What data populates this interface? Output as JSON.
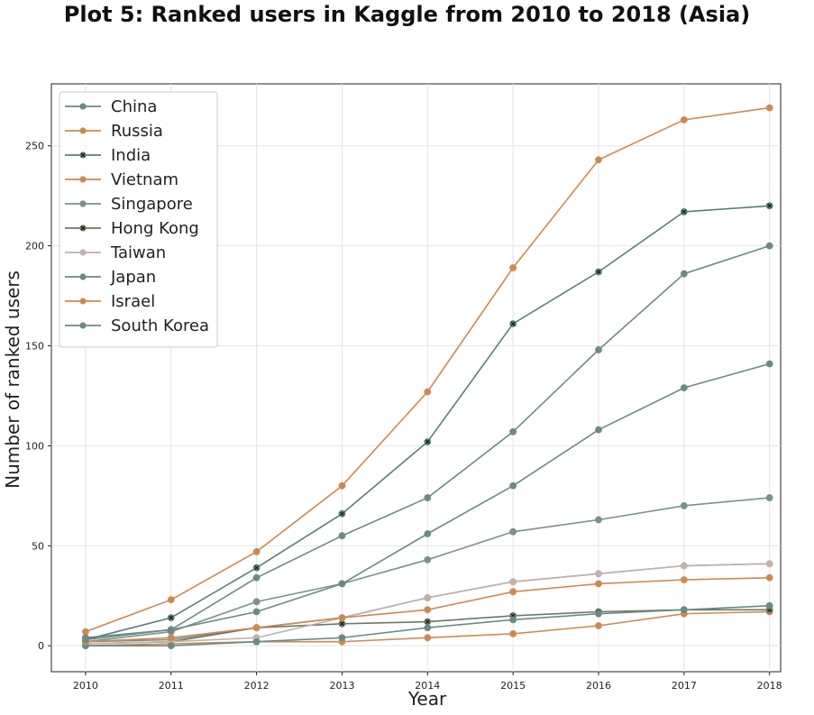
{
  "chart_data": {
    "type": "line",
    "title": "Plot 5: Ranked users in Kaggle from 2010 to 2018 (Asia)",
    "xlabel": "Year",
    "ylabel": "Number of ranked users",
    "x": [
      2010,
      2011,
      2012,
      2013,
      2014,
      2015,
      2016,
      2017,
      2018
    ],
    "xlim": [
      2009.6,
      2018.13
    ],
    "ylim": [
      -13,
      281
    ],
    "yticks": [
      0,
      50,
      100,
      150,
      200,
      250
    ],
    "grid": true,
    "legend_position": "top-left",
    "series": [
      {
        "name": "China",
        "color": "#6b8a85",
        "marker": "o",
        "values": [
          4,
          8,
          17,
          31,
          56,
          80,
          108,
          129,
          141
        ]
      },
      {
        "name": "Russia",
        "color": "#cc8a52",
        "marker": "o",
        "values": [
          7,
          23,
          47,
          80,
          127,
          189,
          243,
          263,
          269
        ]
      },
      {
        "name": "India",
        "color": "#5b7f78",
        "marker": "x",
        "values": [
          3,
          14,
          39,
          66,
          102,
          161,
          187,
          217,
          220
        ]
      },
      {
        "name": "Vietnam",
        "color": "#cc8a52",
        "marker": "o",
        "values": [
          0,
          1,
          2,
          2,
          4,
          6,
          10,
          16,
          17
        ]
      },
      {
        "name": "Singapore",
        "color": "#7a918e",
        "marker": "o",
        "values": [
          2,
          3,
          9,
          14,
          24,
          32,
          36,
          40,
          41
        ]
      },
      {
        "name": "Hong Kong",
        "color": "#6b7a63",
        "marker": "x",
        "values": [
          1,
          2,
          9,
          11,
          12,
          15,
          17,
          18,
          18
        ]
      },
      {
        "name": "Taiwan",
        "color": "#c2b2ae",
        "marker": "o",
        "values": [
          1,
          2,
          4,
          14,
          24,
          32,
          36,
          40,
          41
        ]
      },
      {
        "name": "Japan",
        "color": "#6b8a85",
        "marker": "o",
        "values": [
          0,
          0,
          2,
          4,
          9,
          13,
          16,
          18,
          20
        ]
      },
      {
        "name": "Israel",
        "color": "#cc8a52",
        "marker": "o",
        "values": [
          2,
          4,
          9,
          14,
          18,
          27,
          31,
          33,
          34
        ]
      },
      {
        "name": "South Korea",
        "color": "#6b8a85",
        "marker": "o",
        "values": [
          3,
          8,
          34,
          55,
          74,
          107,
          148,
          186,
          200
        ]
      }
    ],
    "extra_series": [
      {
        "color": "#7a918e",
        "marker": "o",
        "values": [
          2,
          7,
          22,
          31,
          43,
          57,
          63,
          70,
          74
        ]
      }
    ]
  }
}
